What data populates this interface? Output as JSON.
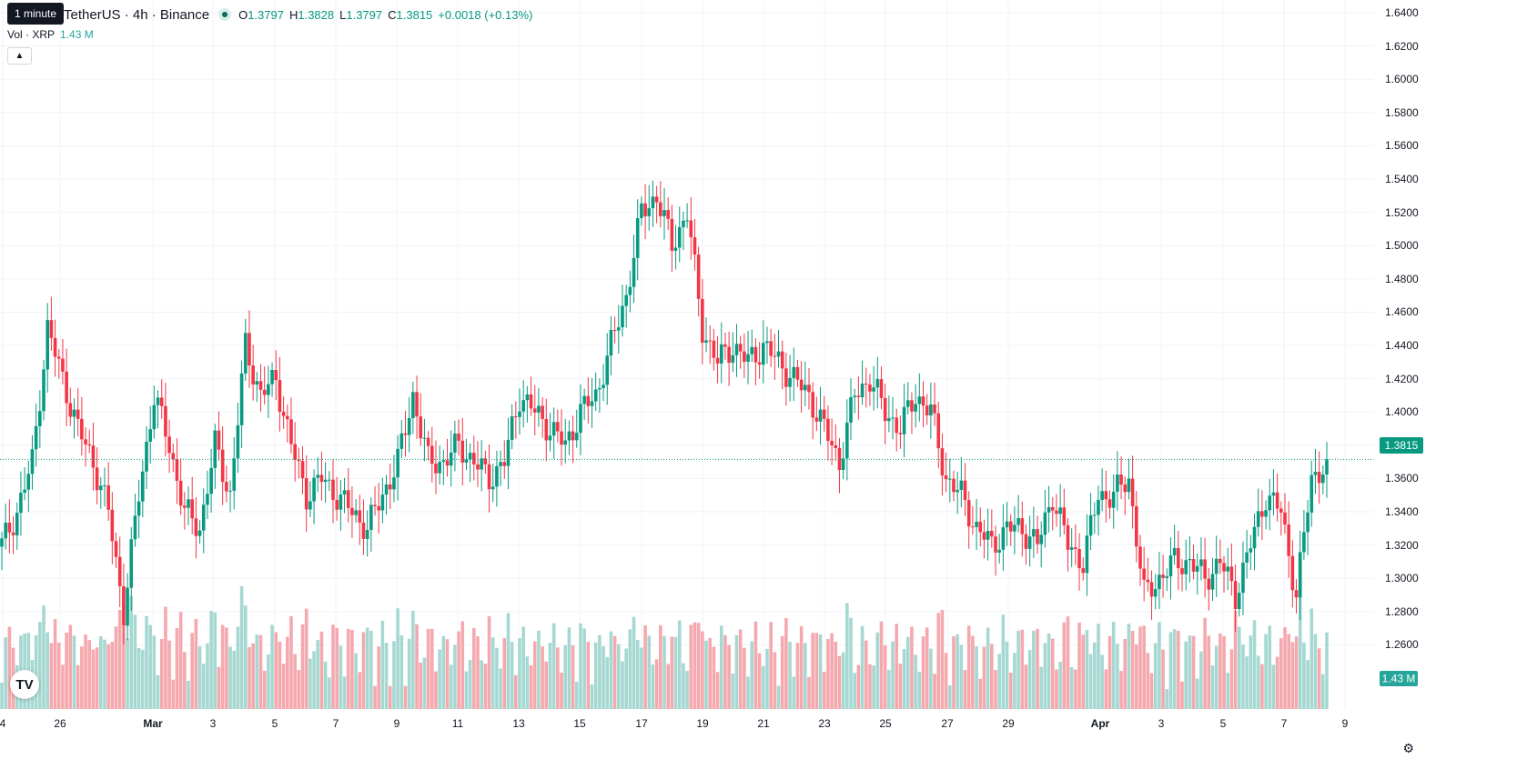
{
  "header": {
    "tooltip": "1 minute",
    "symbol_title": "TetherUS · 4h · Binance",
    "ohlc": [
      {
        "key": "O",
        "value": "1.3797"
      },
      {
        "key": "H",
        "value": "1.3828"
      },
      {
        "key": "L",
        "value": "1.3797"
      },
      {
        "key": "C",
        "value": "1.3815"
      }
    ],
    "change": "+0.0018 (+0.13%)",
    "volume_label": "Vol · XRP",
    "volume_value": "1.43 M"
  },
  "price_axis": {
    "labels": [
      "1.6400",
      "1.6200",
      "1.6000",
      "1.5800",
      "1.5600",
      "1.5400",
      "1.5200",
      "1.5000",
      "1.4800",
      "1.4600",
      "1.4400",
      "1.4200",
      "1.4000",
      "1.3800",
      "1.3600",
      "1.3400",
      "1.3200",
      "1.3000",
      "1.2800",
      "1.2600"
    ],
    "current_price_label": "1.3815",
    "volume_badge": "1.43 M"
  },
  "time_axis": {
    "labels": [
      "4",
      "26",
      "Mar",
      "3",
      "5",
      "7",
      "9",
      "11",
      "13",
      "15",
      "17",
      "19",
      "21",
      "23",
      "25",
      "27",
      "29",
      "Apr",
      "3",
      "5",
      "7",
      "9"
    ]
  },
  "colors": {
    "up": "#089981",
    "down": "#f23645",
    "up_volume": "#a6d8d2",
    "down_volume": "#f5a8ad",
    "grid": "#f0f3fa"
  },
  "chart_data": {
    "type": "candlestick",
    "title": "TetherUS · 4h · Binance",
    "timeframe": "4h",
    "y_range": [
      1.25,
      1.65
    ],
    "grid": true,
    "current_price": 1.3815,
    "anchors": [
      [
        0,
        1.33
      ],
      [
        4,
        1.35
      ],
      [
        8,
        1.38
      ],
      [
        12,
        1.46
      ],
      [
        16,
        1.43
      ],
      [
        20,
        1.4
      ],
      [
        24,
        1.38
      ],
      [
        28,
        1.35
      ],
      [
        32,
        1.29
      ],
      [
        36,
        1.36
      ],
      [
        40,
        1.42
      ],
      [
        44,
        1.39
      ],
      [
        48,
        1.35
      ],
      [
        52,
        1.34
      ],
      [
        56,
        1.39
      ],
      [
        60,
        1.36
      ],
      [
        64,
        1.45
      ],
      [
        68,
        1.42
      ],
      [
        72,
        1.43
      ],
      [
        76,
        1.39
      ],
      [
        80,
        1.36
      ],
      [
        84,
        1.37
      ],
      [
        88,
        1.36
      ],
      [
        92,
        1.35
      ],
      [
        96,
        1.34
      ],
      [
        100,
        1.36
      ],
      [
        104,
        1.38
      ],
      [
        108,
        1.42
      ],
      [
        112,
        1.38
      ],
      [
        116,
        1.38
      ],
      [
        120,
        1.39
      ],
      [
        124,
        1.38
      ],
      [
        128,
        1.37
      ],
      [
        132,
        1.38
      ],
      [
        136,
        1.42
      ],
      [
        140,
        1.41
      ],
      [
        144,
        1.4
      ],
      [
        148,
        1.39
      ],
      [
        152,
        1.41
      ],
      [
        156,
        1.42
      ],
      [
        160,
        1.45
      ],
      [
        164,
        1.48
      ],
      [
        168,
        1.53
      ],
      [
        172,
        1.54
      ],
      [
        176,
        1.51
      ],
      [
        180,
        1.53
      ],
      [
        184,
        1.46
      ],
      [
        188,
        1.44
      ],
      [
        192,
        1.45
      ],
      [
        196,
        1.44
      ],
      [
        200,
        1.45
      ],
      [
        204,
        1.44
      ],
      [
        208,
        1.43
      ],
      [
        212,
        1.42
      ],
      [
        216,
        1.4
      ],
      [
        220,
        1.38
      ],
      [
        224,
        1.42
      ],
      [
        228,
        1.43
      ],
      [
        232,
        1.41
      ],
      [
        236,
        1.4
      ],
      [
        240,
        1.42
      ],
      [
        244,
        1.41
      ],
      [
        248,
        1.37
      ],
      [
        252,
        1.36
      ],
      [
        256,
        1.34
      ],
      [
        260,
        1.33
      ],
      [
        264,
        1.34
      ],
      [
        268,
        1.34
      ],
      [
        272,
        1.33
      ],
      [
        276,
        1.36
      ],
      [
        280,
        1.33
      ],
      [
        284,
        1.32
      ],
      [
        288,
        1.36
      ],
      [
        292,
        1.36
      ],
      [
        296,
        1.37
      ],
      [
        300,
        1.3
      ],
      [
        304,
        1.31
      ],
      [
        308,
        1.32
      ],
      [
        312,
        1.32
      ],
      [
        316,
        1.31
      ],
      [
        320,
        1.32
      ],
      [
        324,
        1.3
      ],
      [
        328,
        1.33
      ],
      [
        332,
        1.36
      ],
      [
        336,
        1.35
      ],
      [
        340,
        1.3
      ],
      [
        344,
        1.37
      ],
      [
        348,
        1.38
      ]
    ]
  }
}
